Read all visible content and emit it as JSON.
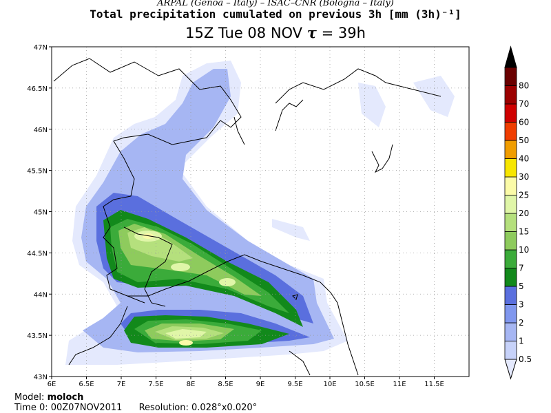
{
  "header": {
    "credit": "ARPAL (Genoa – Italy)   –   ISAC–CNR (Bologna – Italy)",
    "title": "Total precipitation cumulated on previous 3h [mm (3h)⁻¹]",
    "time_label": "15Z Tue 08 NOV",
    "tau_symbol": "τ",
    "tau_value": "= 39h"
  },
  "map": {
    "lon_labels": [
      "6E",
      "6.5E",
      "7E",
      "7.5E",
      "8E",
      "8.5E",
      "9E",
      "9.5E",
      "10E",
      "10.5E",
      "11E",
      "11.5E"
    ],
    "lat_labels": [
      "43N",
      "43.5N",
      "44N",
      "44.5N",
      "45N",
      "45.5N",
      "46N",
      "46.5N",
      "47N"
    ],
    "lon_range": [
      6.0,
      12.0
    ],
    "lat_range": [
      43.0,
      47.0
    ],
    "grid": "dotted"
  },
  "colorbar": {
    "levels": [
      "0.5",
      "1",
      "2",
      "3",
      "5",
      "7",
      "10",
      "15",
      "20",
      "25",
      "30",
      "40",
      "50",
      "60",
      "70",
      "80"
    ],
    "colors": [
      "#e4e9fd",
      "#c7d2f9",
      "#a6b6f3",
      "#8097ee",
      "#5a6fde",
      "#12891b",
      "#3bab3a",
      "#8ecb5d",
      "#b5e07d",
      "#e0f6a8",
      "#fbfba8",
      "#f7e600",
      "#f09d00",
      "#ef3d00",
      "#cf0000",
      "#9c0000",
      "#6a0000",
      "#000000"
    ]
  },
  "footer": {
    "model_label": "Model:",
    "model_value": "moloch",
    "time0": "Time 0: 00Z07NOV2011",
    "resolution": "Resolution: 0.028°x0.020°"
  }
}
